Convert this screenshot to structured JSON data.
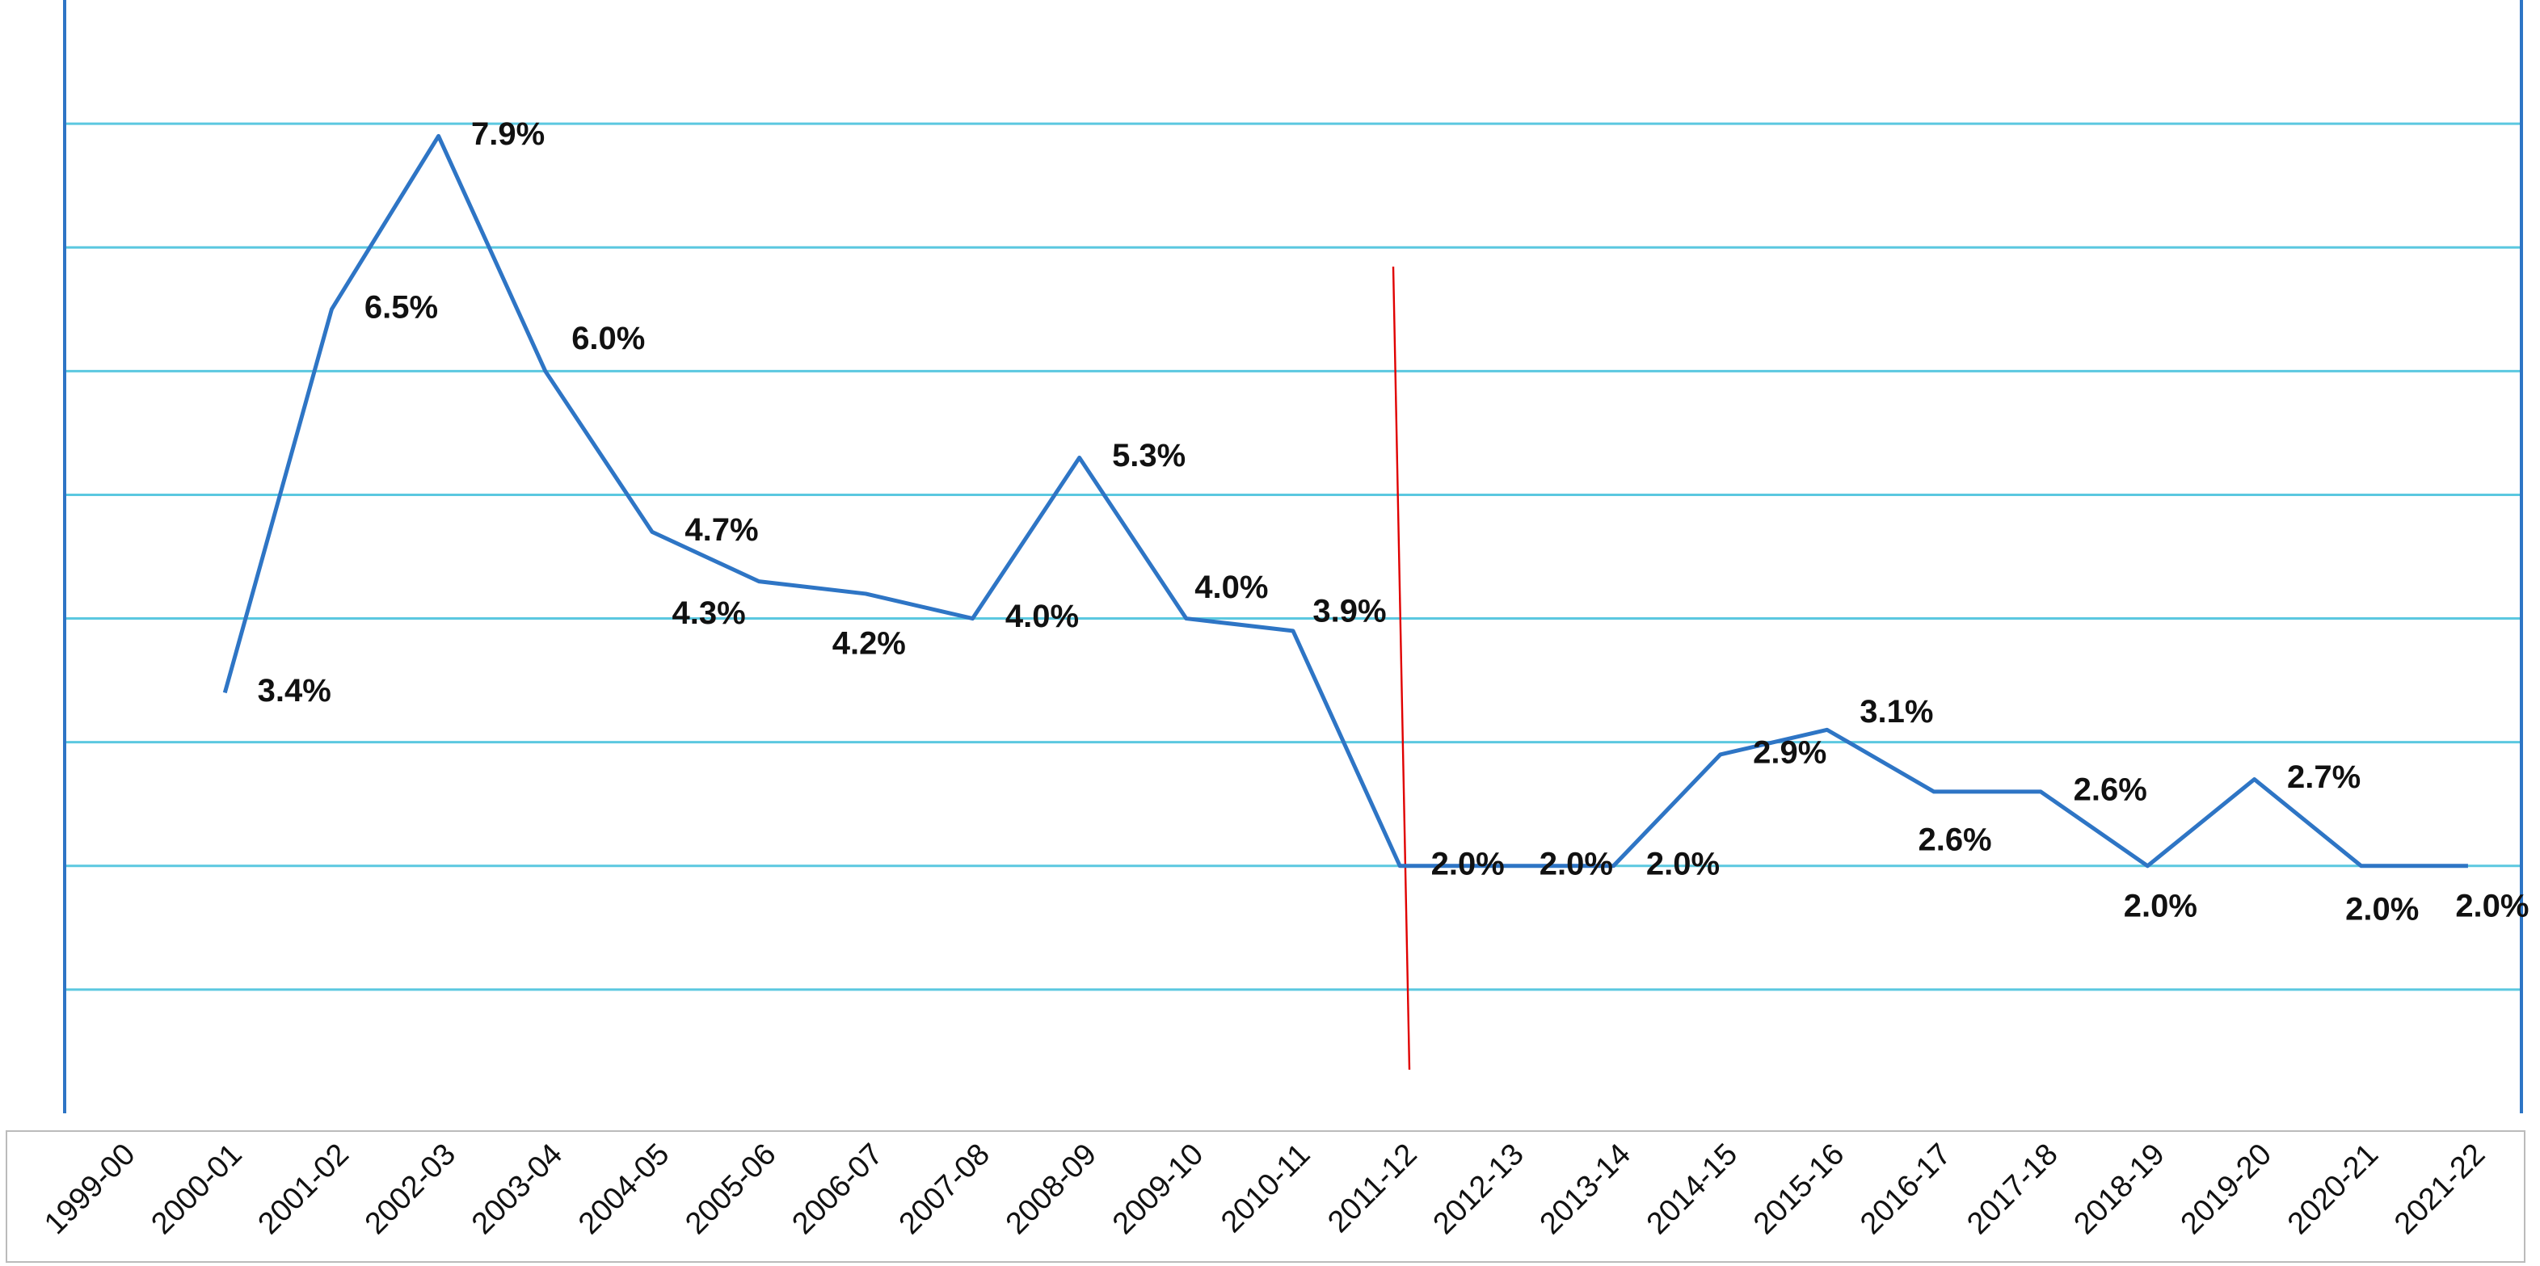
{
  "chart_data": {
    "type": "line",
    "categories": [
      "1999-00",
      "2000-01",
      "2001-02",
      "2002-03",
      "2003-04",
      "2004-05",
      "2005-06",
      "2006-07",
      "2007-08",
      "2008-09",
      "2009-10",
      "2010-11",
      "2011-12",
      "2012-13",
      "2013-14",
      "2014-15",
      "2015-16",
      "2016-17",
      "2017-18",
      "2018-19",
      "2019-20",
      "2020-21",
      "2021-22"
    ],
    "series": [
      {
        "color": "#2e75c5",
        "values": [
          null,
          3.4,
          6.5,
          7.9,
          6.0,
          4.7,
          4.3,
          4.2,
          4.0,
          5.3,
          4.0,
          3.9,
          2.0,
          2.0,
          2.0,
          2.9,
          3.1,
          2.6,
          2.6,
          2.0,
          2.7,
          2.0,
          2.0
        ],
        "value_labels": [
          null,
          "3.4%",
          "6.5%",
          "7.9%",
          "6.0%",
          "4.7%",
          "4.3%",
          "4.2%",
          "4.0%",
          "5.3%",
          "4.0%",
          "3.9%",
          "2.0%",
          "2.0%",
          "2.0%",
          "2.9%",
          "3.1%",
          "2.6%",
          "2.6%",
          "2.0%",
          "2.7%",
          "2.0%",
          "2.0%"
        ]
      }
    ],
    "ylim": [
      0,
      9
    ],
    "yticks": [
      1,
      2,
      3,
      4,
      5,
      6,
      7,
      8
    ],
    "grid": true
  }
}
